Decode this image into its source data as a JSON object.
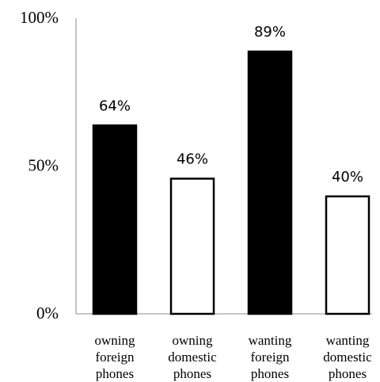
{
  "chart_data": {
    "type": "bar",
    "categories": [
      [
        "owning",
        "foreign",
        "phones"
      ],
      [
        "owning",
        "domestic",
        "phones"
      ],
      [
        "wanting",
        "foreign",
        "phones"
      ],
      [
        "wanting",
        "domestic",
        "phones"
      ]
    ],
    "values": [
      64,
      46,
      89,
      40
    ],
    "data_labels": [
      "64%",
      "46%",
      "89%",
      "40%"
    ],
    "bar_fill": [
      "#000000",
      "#ffffff",
      "#000000",
      "#ffffff"
    ],
    "y_ticks": [
      0,
      50,
      100
    ],
    "y_tick_labels": [
      "0%",
      "50%",
      "100%"
    ],
    "ylim": [
      0,
      100
    ],
    "title": "",
    "xlabel": "",
    "ylabel": "",
    "grid": false,
    "legend": false
  }
}
